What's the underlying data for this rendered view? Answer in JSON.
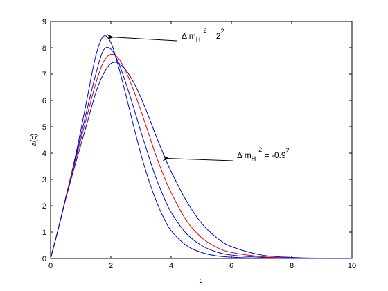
{
  "chart_data": {
    "type": "line",
    "title": "",
    "xlabel": "ς",
    "ylabel": "a(ς)",
    "xlim": [
      0,
      10
    ],
    "ylim": [
      0,
      9
    ],
    "xticks": [
      0,
      2,
      4,
      6,
      8,
      10
    ],
    "yticks": [
      0,
      1,
      2,
      3,
      4,
      5,
      6,
      7,
      8,
      9
    ],
    "grid": false,
    "legend": "none",
    "series": [
      {
        "color": "#0000cc",
        "x": [
          0,
          0.25,
          0.5,
          0.75,
          1.0,
          1.25,
          1.5,
          1.75,
          2.0,
          2.25,
          2.5,
          2.75,
          3.0,
          3.25,
          3.5,
          3.75,
          4.0,
          4.5,
          5.0,
          5.5,
          6.0,
          7.0,
          8.0,
          9.0,
          10.0
        ],
        "y": [
          0,
          1.1,
          2.3,
          3.5,
          4.85,
          6.3,
          7.7,
          8.43,
          8.2,
          7.3,
          6.2,
          5.05,
          3.95,
          3.0,
          2.2,
          1.55,
          1.05,
          0.5,
          0.23,
          0.1,
          0.05,
          0.01,
          0,
          0,
          0
        ]
      },
      {
        "color": "#0000cc",
        "x": [
          0,
          0.25,
          0.5,
          0.75,
          1.0,
          1.25,
          1.5,
          1.75,
          2.0,
          2.25,
          2.5,
          2.75,
          3.0,
          3.25,
          3.5,
          3.75,
          4.0,
          4.5,
          5.0,
          5.5,
          6.0,
          7.0,
          8.0,
          9.0,
          10.0
        ],
        "y": [
          0,
          1.1,
          2.3,
          3.45,
          4.65,
          5.85,
          7.0,
          7.9,
          7.95,
          7.45,
          6.65,
          5.75,
          4.8,
          3.9,
          3.05,
          2.35,
          1.75,
          0.95,
          0.5,
          0.25,
          0.13,
          0.04,
          0.01,
          0,
          0
        ]
      },
      {
        "color": "#dd0000",
        "x": [
          0,
          0.25,
          0.5,
          0.75,
          1.0,
          1.25,
          1.5,
          1.75,
          2.0,
          2.25,
          2.5,
          2.75,
          3.0,
          3.25,
          3.5,
          3.75,
          4.0,
          4.5,
          5.0,
          5.5,
          6.0,
          7.0,
          8.0,
          9.0,
          10.0
        ],
        "y": [
          0,
          1.1,
          2.3,
          3.4,
          4.5,
          5.6,
          6.65,
          7.45,
          7.75,
          7.6,
          7.1,
          6.4,
          5.6,
          4.75,
          3.9,
          3.15,
          2.5,
          1.45,
          0.8,
          0.43,
          0.23,
          0.07,
          0.02,
          0.01,
          0
        ]
      },
      {
        "color": "#0000cc",
        "x": [
          0,
          0.25,
          0.5,
          0.75,
          1.0,
          1.25,
          1.5,
          1.75,
          2.0,
          2.25,
          2.5,
          2.75,
          3.0,
          3.25,
          3.5,
          3.75,
          4.0,
          4.5,
          5.0,
          5.5,
          6.0,
          7.0,
          8.0,
          9.0,
          10.0
        ],
        "y": [
          0,
          1.1,
          2.25,
          3.3,
          4.3,
          5.3,
          6.3,
          7.0,
          7.4,
          7.42,
          7.15,
          6.7,
          6.1,
          5.4,
          4.65,
          3.95,
          3.3,
          2.2,
          1.35,
          0.8,
          0.45,
          0.13,
          0.04,
          0.01,
          0
        ]
      }
    ],
    "annotations": [
      {
        "text_main": "Δ m",
        "text_sub": "H",
        "text_sup": "2",
        "text_rest": " = 2",
        "text_rest_sup": "2",
        "arrow_to": [
          1.85,
          8.4
        ]
      },
      {
        "text_main": "Δ m",
        "text_sub": "H",
        "text_sup": "2",
        "text_rest": " = -0.9",
        "text_rest_sup": "2",
        "arrow_to": [
          3.7,
          3.8
        ]
      }
    ]
  }
}
